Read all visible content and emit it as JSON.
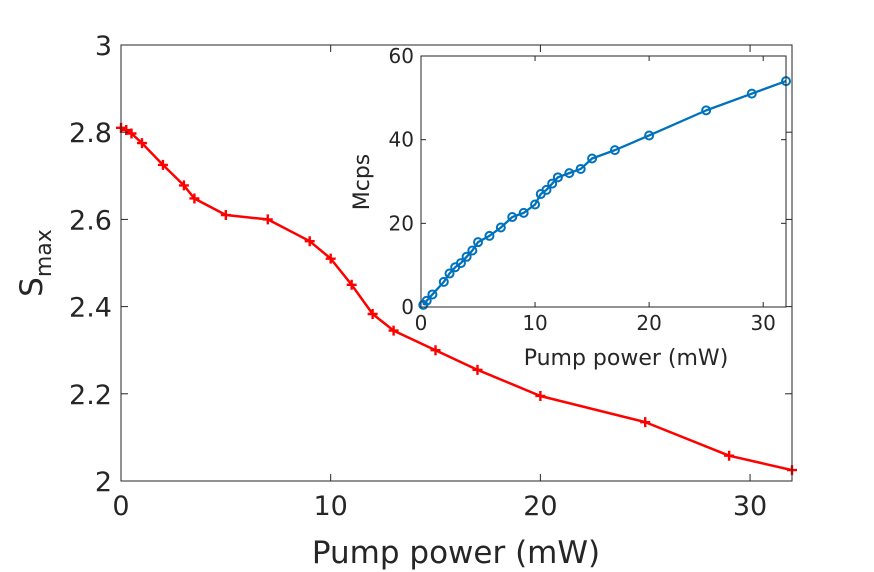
{
  "chart_data": [
    {
      "type": "line",
      "title": "",
      "xlabel": "Pump power (mW)",
      "ylabel": "S",
      "ylabel_sub": "max",
      "xlim": [
        0,
        32
      ],
      "ylim": [
        2,
        3
      ],
      "xticks": [
        0,
        10,
        20,
        30
      ],
      "yticks": [
        2,
        2.2,
        2.4,
        2.6,
        2.8,
        3
      ],
      "xtick_labels": [
        "0",
        "10",
        "20",
        "30"
      ],
      "ytick_labels": [
        "2",
        "2.2",
        "2.4",
        "2.6",
        "2.8",
        "3"
      ],
      "series": [
        {
          "name": "S_max",
          "color": "#ff0000",
          "marker": "plus",
          "x": [
            0,
            0.25,
            0.5,
            1,
            2,
            3,
            3.5,
            5,
            7,
            9,
            10,
            11,
            12,
            13,
            15,
            17,
            20,
            25,
            29,
            32
          ],
          "y": [
            2.81,
            2.805,
            2.797,
            2.775,
            2.725,
            2.678,
            2.648,
            2.61,
            2.6,
            2.55,
            2.51,
            2.45,
            2.383,
            2.345,
            2.3,
            2.255,
            2.195,
            2.135,
            2.058,
            2.025
          ]
        }
      ]
    },
    {
      "type": "line",
      "title": "",
      "xlabel": "Pump power (mW)",
      "ylabel": "Mcps",
      "xlim": [
        0,
        32
      ],
      "ylim": [
        0,
        60
      ],
      "xticks": [
        0,
        10,
        20,
        30
      ],
      "yticks": [
        0,
        20,
        40,
        60
      ],
      "xtick_labels": [
        "0",
        "10",
        "20",
        "30"
      ],
      "ytick_labels": [
        "0",
        "20",
        "40",
        "60"
      ],
      "series": [
        {
          "name": "Mcps",
          "color": "#0072bd",
          "marker": "circle",
          "x": [
            0.2,
            0.5,
            1,
            2,
            2.5,
            3,
            3.5,
            4,
            4.5,
            5,
            6,
            7,
            8,
            9,
            10,
            10.5,
            11,
            11.5,
            12,
            13,
            14,
            15,
            17,
            20,
            25,
            29,
            32
          ],
          "y": [
            0.5,
            1.5,
            3,
            6,
            8,
            9.5,
            10.5,
            12,
            13.5,
            15.5,
            17,
            19,
            21.5,
            22.5,
            24.5,
            27,
            28,
            29.5,
            31,
            32,
            33,
            35.5,
            37.5,
            41,
            47,
            51,
            54
          ]
        }
      ]
    }
  ]
}
